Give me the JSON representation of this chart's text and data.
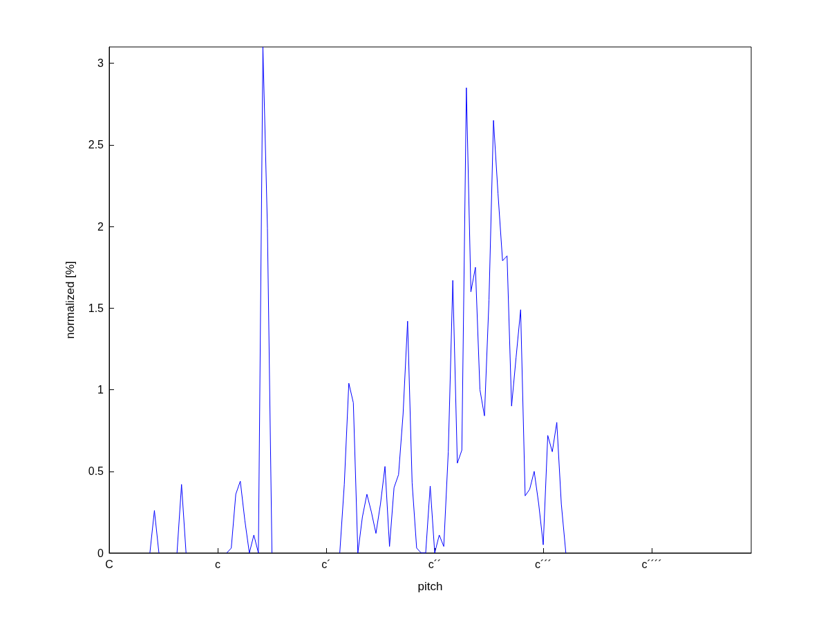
{
  "chart_data": {
    "type": "line",
    "xlabel": "pitch",
    "ylabel": "normalized [%]",
    "categories": [
      "C",
      null,
      null,
      null,
      null,
      null,
      null,
      null,
      null,
      null,
      null,
      null,
      null,
      null,
      null,
      null,
      null,
      null,
      null,
      null,
      null,
      null,
      null,
      null,
      "c",
      null,
      null,
      null,
      null,
      null,
      null,
      null,
      null,
      null,
      null,
      null,
      null,
      null,
      null,
      null,
      null,
      null,
      null,
      null,
      null,
      null,
      null,
      null,
      "c´",
      null,
      null,
      null,
      null,
      null,
      null,
      null,
      null,
      null,
      null,
      null,
      null,
      null,
      null,
      null,
      null,
      null,
      null,
      null,
      null,
      null,
      null,
      null,
      "c´´",
      null,
      null,
      null,
      null,
      null,
      null,
      null,
      null,
      null,
      null,
      null,
      null,
      null,
      null,
      null,
      null,
      null,
      null,
      null,
      null,
      null,
      null,
      null,
      "c´´´",
      null,
      null,
      null,
      null,
      null,
      null,
      null,
      null,
      null,
      null,
      null,
      null,
      null,
      null,
      null,
      null,
      null,
      null,
      null,
      null,
      null,
      null,
      null,
      "c´´´´",
      null,
      null,
      null,
      null,
      null,
      null,
      null,
      null,
      null,
      null,
      null,
      null,
      null,
      null,
      null,
      null,
      null,
      null,
      null,
      null,
      null,
      null
    ],
    "ylim": [
      0,
      3.1
    ],
    "yticks": [
      0,
      0.5,
      1,
      1.5,
      2,
      2.5,
      3
    ],
    "series": [
      {
        "color": "#0000ff",
        "values": [
          null,
          null,
          null,
          null,
          null,
          null,
          null,
          null,
          null,
          0,
          0.26,
          0,
          null,
          null,
          null,
          0,
          0.42,
          0,
          null,
          null,
          null,
          null,
          null,
          null,
          null,
          null,
          0,
          0.03,
          0.36,
          0.44,
          0.2,
          0,
          0.11,
          0,
          3.1,
          1.99,
          0,
          null,
          null,
          null,
          null,
          null,
          null,
          null,
          null,
          null,
          null,
          null,
          null,
          null,
          null,
          0,
          0.42,
          1.04,
          0.92,
          0,
          0.22,
          0.36,
          0.25,
          0.12,
          0.3,
          0.53,
          0.04,
          0.4,
          0.48,
          0.85,
          1.42,
          0.43,
          0.03,
          0,
          0,
          0.41,
          0,
          0.11,
          0.04,
          0.62,
          1.67,
          0.55,
          0.63,
          2.85,
          1.6,
          1.75,
          1,
          0.84,
          1.55,
          2.65,
          2.2,
          1.79,
          1.82,
          0.9,
          1.2,
          1.49,
          0.35,
          0.39,
          0.5,
          0.3,
          0.05,
          0.72,
          0.62,
          0.8,
          0.3,
          0,
          null,
          null,
          null,
          null,
          null,
          null,
          null,
          null,
          null,
          null,
          null,
          null,
          null,
          null,
          null,
          null,
          null,
          null,
          null,
          null,
          null,
          null,
          null,
          null,
          null,
          null,
          null,
          null,
          null,
          null,
          null,
          null,
          null,
          null,
          null,
          null,
          null,
          null,
          null,
          null,
          null
        ]
      }
    ]
  }
}
